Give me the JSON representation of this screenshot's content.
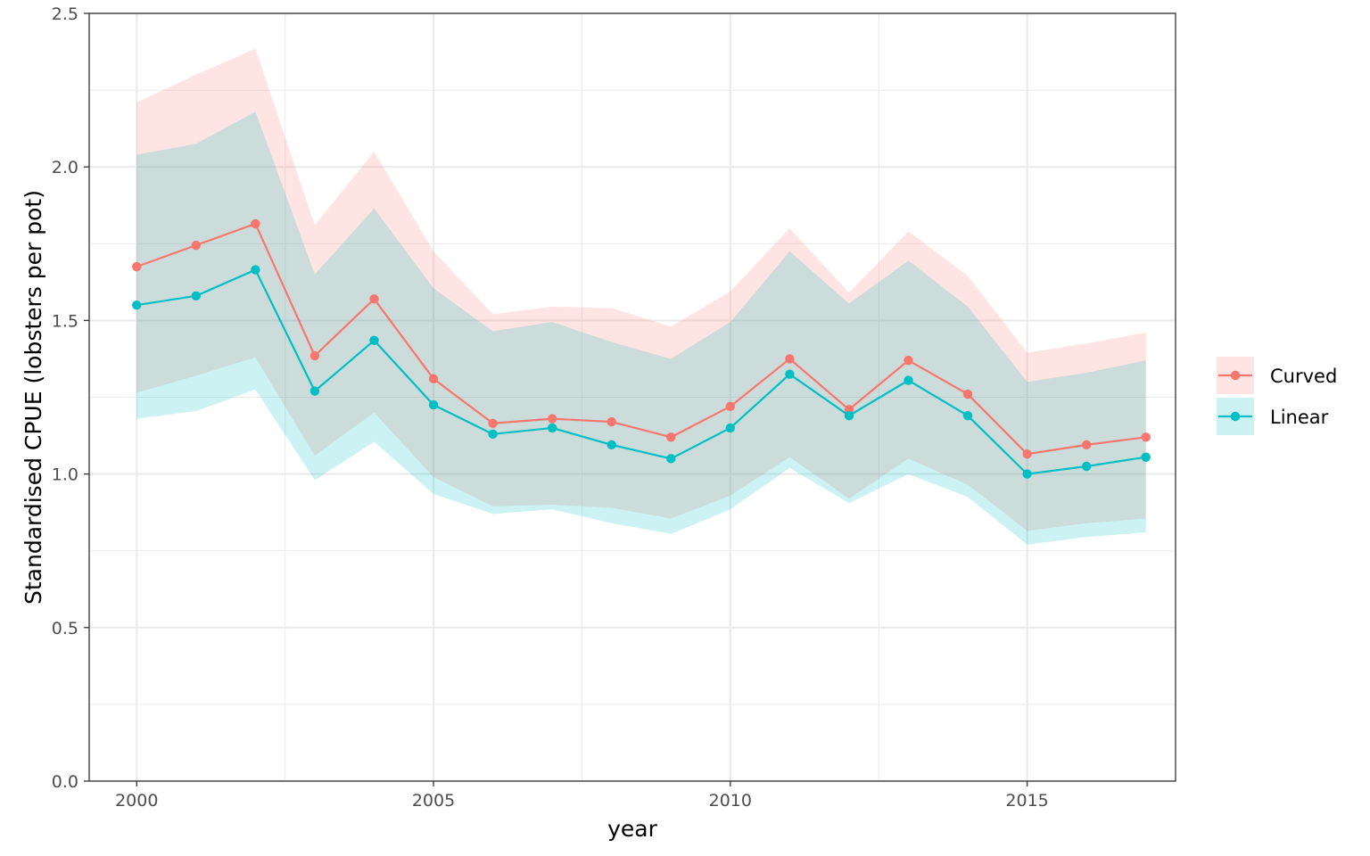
{
  "chart_data": {
    "type": "line",
    "xlabel": "year",
    "ylabel": "Standardised CPUE (lobsters per pot)",
    "xlim": [
      1999.2,
      2017.5
    ],
    "ylim": [
      0,
      2.5
    ],
    "x_ticks": [
      2000,
      2005,
      2010,
      2015
    ],
    "x_tick_labels": [
      "2000",
      "2005",
      "2010",
      "2015"
    ],
    "y_ticks": [
      0,
      0.5,
      1,
      1.5,
      2,
      2.5
    ],
    "y_tick_labels": [
      "0.0",
      "0.5",
      "1.0",
      "1.5",
      "2.0",
      "2.5"
    ],
    "grid": true,
    "legend_position": "right",
    "x": [
      2000,
      2001,
      2002,
      2003,
      2004,
      2005,
      2006,
      2007,
      2008,
      2009,
      2010,
      2011,
      2012,
      2013,
      2014,
      2015,
      2016,
      2017
    ],
    "series": [
      {
        "name": "Curved",
        "color": "#F8766D",
        "values": [
          1.675,
          1.745,
          1.815,
          1.385,
          1.57,
          1.31,
          1.165,
          1.18,
          1.17,
          1.12,
          1.22,
          1.375,
          1.21,
          1.37,
          1.26,
          1.065,
          1.095,
          1.12
        ],
        "lower": [
          1.265,
          1.32,
          1.38,
          1.06,
          1.2,
          0.99,
          0.895,
          0.9,
          0.89,
          0.855,
          0.93,
          1.055,
          0.92,
          1.05,
          0.965,
          0.815,
          0.84,
          0.855
        ],
        "upper": [
          2.21,
          2.3,
          2.385,
          1.81,
          2.05,
          1.725,
          1.52,
          1.545,
          1.54,
          1.48,
          1.595,
          1.8,
          1.59,
          1.79,
          1.645,
          1.395,
          1.425,
          1.46
        ]
      },
      {
        "name": "Linear",
        "color": "#00BFC4",
        "values": [
          1.55,
          1.58,
          1.665,
          1.27,
          1.435,
          1.225,
          1.13,
          1.15,
          1.095,
          1.05,
          1.15,
          1.325,
          1.19,
          1.305,
          1.19,
          1.0,
          1.025,
          1.055
        ],
        "lower": [
          1.18,
          1.205,
          1.275,
          0.98,
          1.105,
          0.935,
          0.87,
          0.885,
          0.84,
          0.805,
          0.885,
          1.02,
          0.905,
          1.0,
          0.925,
          0.77,
          0.795,
          0.81
        ],
        "upper": [
          2.04,
          2.075,
          2.18,
          1.65,
          1.865,
          1.605,
          1.465,
          1.495,
          1.43,
          1.375,
          1.495,
          1.725,
          1.555,
          1.695,
          1.545,
          1.3,
          1.33,
          1.37
        ]
      }
    ]
  }
}
